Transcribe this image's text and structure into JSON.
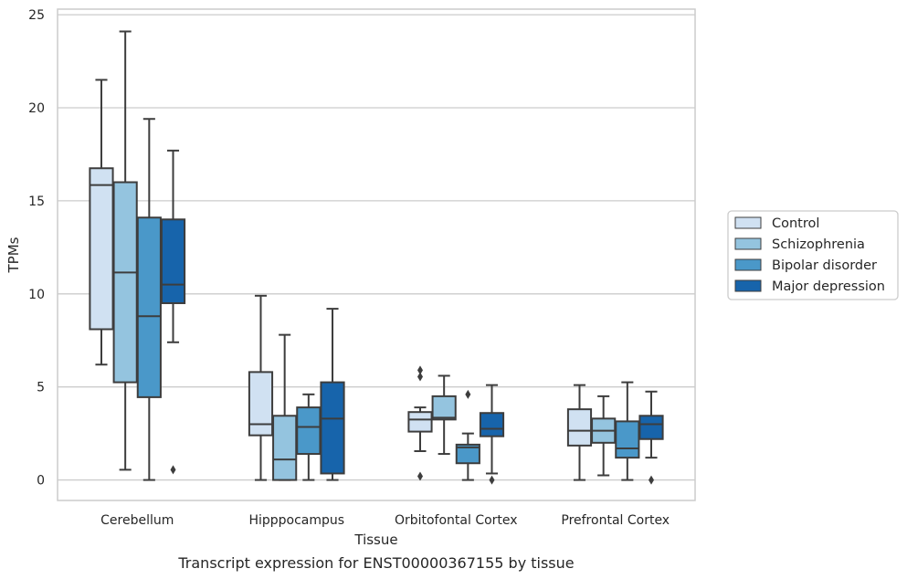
{
  "caption": "Transcript expression for ENST00000367155 by tissue",
  "chart_data": {
    "type": "box",
    "xlabel": "Tissue",
    "ylabel": "TPMs",
    "ylim": [
      -1.1,
      25.3
    ],
    "yticks": [
      0,
      5,
      10,
      15,
      20,
      25
    ],
    "grid": "y",
    "legend_placement": "outside right",
    "categories": [
      "Cerebellum",
      "Hipppocampus",
      "Orbitofontal Cortex",
      "Prefrontal Cortex"
    ],
    "series": [
      {
        "name": "Control",
        "color": "#d0e1f2",
        "boxes": [
          {
            "whislo": 6.2,
            "q1": 8.1,
            "med": 15.85,
            "q3": 16.75,
            "whishi": 21.5,
            "fliers": []
          },
          {
            "whislo": 0.0,
            "q1": 2.4,
            "med": 3.0,
            "q3": 5.8,
            "whishi": 9.9,
            "fliers": []
          },
          {
            "whislo": 1.55,
            "q1": 2.6,
            "med": 3.25,
            "q3": 3.65,
            "whishi": 3.9,
            "fliers": [
              0.2,
              5.55,
              5.9
            ]
          },
          {
            "whislo": 0.0,
            "q1": 1.85,
            "med": 2.65,
            "q3": 3.8,
            "whishi": 5.1,
            "fliers": []
          }
        ]
      },
      {
        "name": "Schizophrenia",
        "color": "#94c4df",
        "boxes": [
          {
            "whislo": 0.55,
            "q1": 5.25,
            "med": 11.15,
            "q3": 16.0,
            "whishi": 24.1,
            "fliers": []
          },
          {
            "whislo": 0.0,
            "q1": 0.0,
            "med": 1.1,
            "q3": 3.45,
            "whishi": 7.8,
            "fliers": []
          },
          {
            "whislo": 1.4,
            "q1": 3.25,
            "med": 3.35,
            "q3": 4.5,
            "whishi": 5.6,
            "fliers": []
          },
          {
            "whislo": 0.25,
            "q1": 2.0,
            "med": 2.65,
            "q3": 3.3,
            "whishi": 4.5,
            "fliers": []
          }
        ]
      },
      {
        "name": "Bipolar disorder",
        "color": "#4a98c9",
        "boxes": [
          {
            "whislo": 0.0,
            "q1": 4.45,
            "med": 8.8,
            "q3": 14.1,
            "whishi": 19.4,
            "fliers": []
          },
          {
            "whislo": 0.0,
            "q1": 1.4,
            "med": 2.85,
            "q3": 3.9,
            "whishi": 4.6,
            "fliers": []
          },
          {
            "whislo": 0.0,
            "q1": 0.9,
            "med": 1.75,
            "q3": 1.9,
            "whishi": 2.5,
            "fliers": [
              4.6
            ]
          },
          {
            "whislo": 0.0,
            "q1": 1.2,
            "med": 1.7,
            "q3": 3.15,
            "whishi": 5.25,
            "fliers": []
          }
        ]
      },
      {
        "name": "Major depression",
        "color": "#1764ab",
        "boxes": [
          {
            "whislo": 7.4,
            "q1": 9.5,
            "med": 10.5,
            "q3": 14.0,
            "whishi": 17.7,
            "fliers": [
              0.55
            ]
          },
          {
            "whislo": 0.0,
            "q1": 0.35,
            "med": 3.3,
            "q3": 5.25,
            "whishi": 9.2,
            "fliers": []
          },
          {
            "whislo": 0.35,
            "q1": 2.35,
            "med": 2.75,
            "q3": 3.6,
            "whishi": 5.1,
            "fliers": [
              0.0
            ]
          },
          {
            "whislo": 1.2,
            "q1": 2.2,
            "med": 3.0,
            "q3": 3.45,
            "whishi": 4.75,
            "fliers": [
              0.0
            ]
          }
        ]
      }
    ]
  }
}
